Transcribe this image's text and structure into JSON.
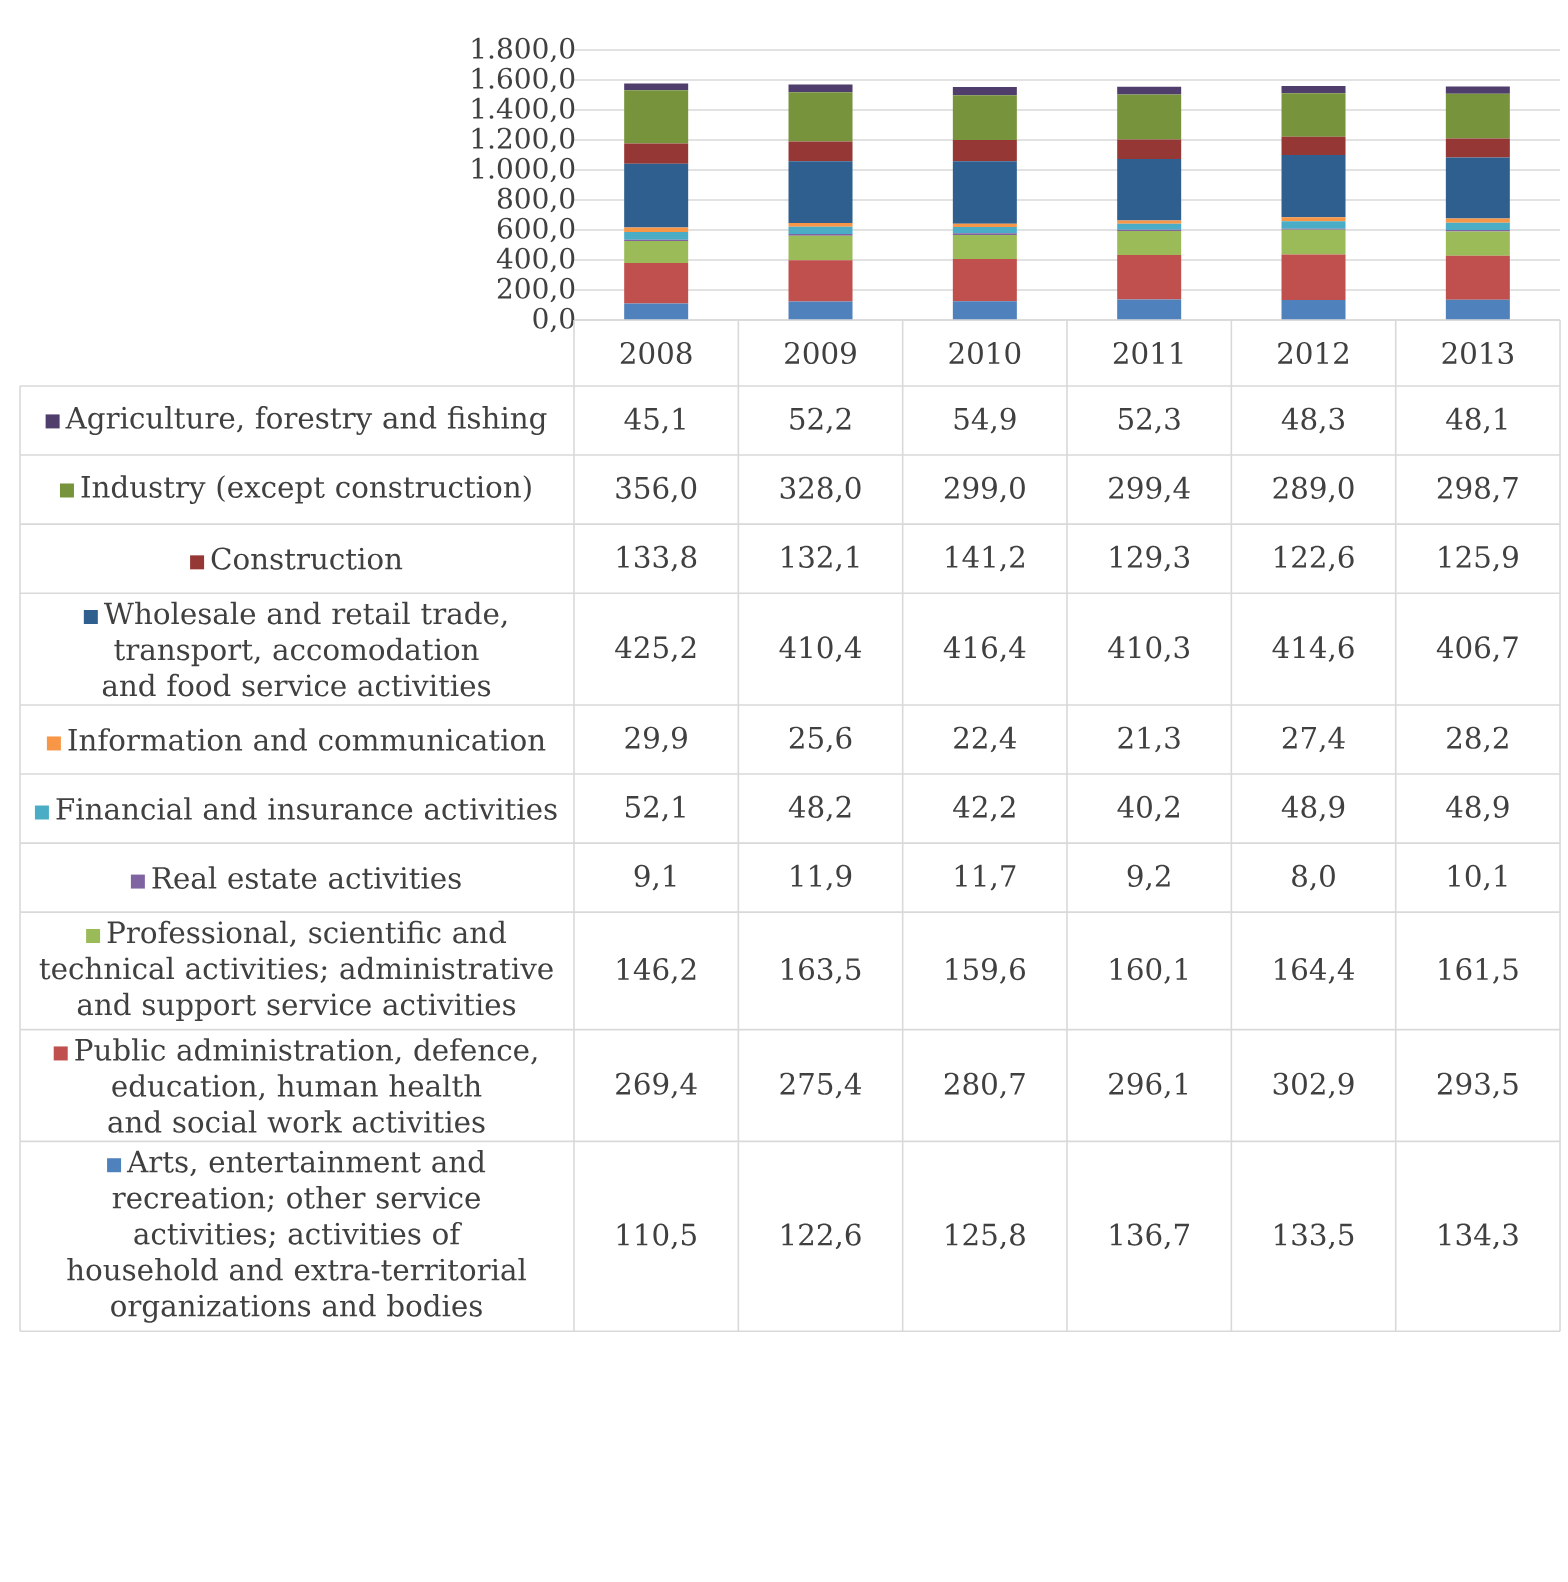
{
  "chart_data": {
    "type": "bar",
    "stacked": true,
    "grid": "y",
    "legend": "bottom",
    "categories": [
      "2008",
      "2009",
      "2010",
      "2011",
      "2012",
      "2013"
    ],
    "ylim": [
      0,
      1800
    ],
    "yticks": [
      {
        "value": 0,
        "label": "0,0"
      },
      {
        "value": 200,
        "label": "200,0"
      },
      {
        "value": 400,
        "label": "400,0"
      },
      {
        "value": 600,
        "label": "600,0"
      },
      {
        "value": 800,
        "label": "800,0"
      },
      {
        "value": 1000,
        "label": "1.000,0"
      },
      {
        "value": 1200,
        "label": "1.200,0"
      },
      {
        "value": 1400,
        "label": "1.400,0"
      },
      {
        "value": 1600,
        "label": "1.600,0"
      },
      {
        "value": 1800,
        "label": "1.800,0"
      }
    ],
    "series": [
      {
        "name": "Arts, entertainment and recreation; other service activities; activities of household and extra-territorial organizations and bodies",
        "color": "#4f81bd",
        "values": [
          110.5,
          122.6,
          125.8,
          136.7,
          133.5,
          134.3
        ],
        "value_labels": [
          "110,5",
          "122,6",
          "125,8",
          "136,7",
          "133,5",
          "134,3"
        ]
      },
      {
        "name": "Public administration, defence, education, human health and social work activities",
        "color": "#c0504d",
        "values": [
          269.4,
          275.4,
          280.7,
          296.1,
          302.9,
          293.5
        ],
        "value_labels": [
          "269,4",
          "275,4",
          "280,7",
          "296,1",
          "302,9",
          "293,5"
        ]
      },
      {
        "name": "Professional, scientific and technical activities; administrative and support service activities",
        "color": "#9bbb59",
        "values": [
          146.2,
          163.5,
          159.6,
          160.1,
          164.4,
          161.5
        ],
        "value_labels": [
          "146,2",
          "163,5",
          "159,6",
          "160,1",
          "164,4",
          "161,5"
        ]
      },
      {
        "name": "Real estate activities",
        "color": "#8064a2",
        "values": [
          9.1,
          11.9,
          11.7,
          9.2,
          8.0,
          10.1
        ],
        "value_labels": [
          "9,1",
          "11,9",
          "11,7",
          "9,2",
          "8,0",
          "10,1"
        ]
      },
      {
        "name": "Financial and insurance activities",
        "color": "#4bacc6",
        "values": [
          52.1,
          48.2,
          42.2,
          40.2,
          48.9,
          48.9
        ],
        "value_labels": [
          "52,1",
          "48,2",
          "42,2",
          "40,2",
          "48,9",
          "48,9"
        ]
      },
      {
        "name": "Information and communication",
        "color": "#f79646",
        "values": [
          29.9,
          25.6,
          22.4,
          21.3,
          27.4,
          28.2
        ],
        "value_labels": [
          "29,9",
          "25,6",
          "22,4",
          "21,3",
          "27,4",
          "28,2"
        ]
      },
      {
        "name": "Wholesale and retail trade, transport, accomodation and food service activities",
        "color": "#2e5f8e",
        "values": [
          425.2,
          410.4,
          416.4,
          410.3,
          414.6,
          406.7
        ],
        "value_labels": [
          "425,2",
          "410,4",
          "416,4",
          "410,3",
          "414,6",
          "406,7"
        ]
      },
      {
        "name": "Construction",
        "color": "#953735",
        "values": [
          133.8,
          132.1,
          141.2,
          129.3,
          122.6,
          125.9
        ],
        "value_labels": [
          "133,8",
          "132,1",
          "141,2",
          "129,3",
          "122,6",
          "125,9"
        ]
      },
      {
        "name": "Industry (except construction)",
        "color": "#77933c",
        "values": [
          356.0,
          328.0,
          299.0,
          299.4,
          289.0,
          298.7
        ],
        "value_labels": [
          "356,0",
          "328,0",
          "299,0",
          "299,4",
          "289,0",
          "298,7"
        ]
      },
      {
        "name": "Agriculture, forestry and fishing",
        "color": "#4f3d6b",
        "values": [
          45.1,
          52.2,
          54.9,
          52.3,
          48.3,
          48.1
        ],
        "value_labels": [
          "45,1",
          "52,2",
          "54,9",
          "52,3",
          "48,3",
          "48,1"
        ]
      }
    ]
  }
}
